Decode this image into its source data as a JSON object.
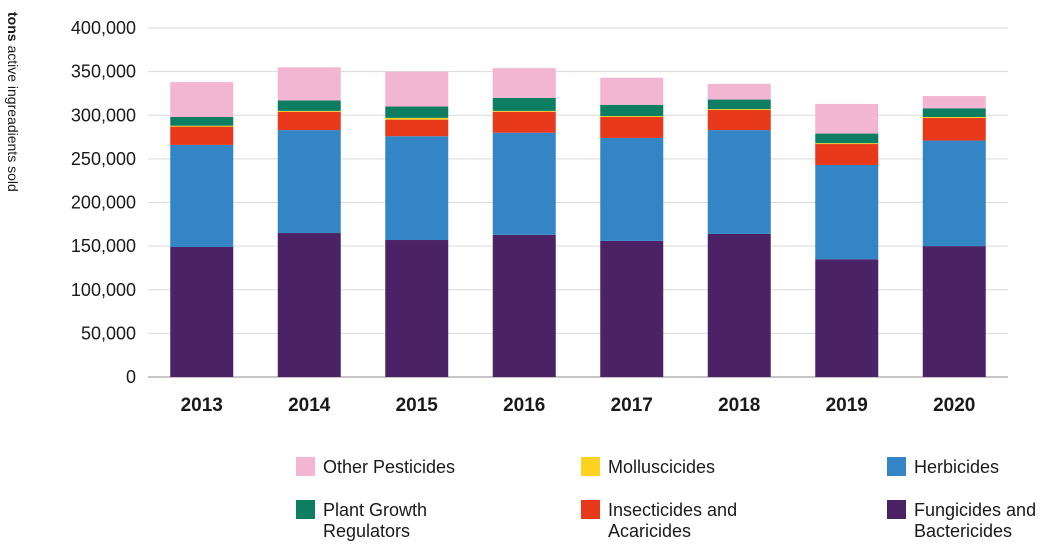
{
  "y_axis_title": {
    "unit": "tons",
    "rest": " active ingreadients sold"
  },
  "chart_data": {
    "type": "bar",
    "stacked": true,
    "categories": [
      "2013",
      "2014",
      "2015",
      "2016",
      "2017",
      "2018",
      "2019",
      "2020"
    ],
    "ylim": [
      0,
      400000
    ],
    "yticks": [
      0,
      50000,
      100000,
      150000,
      200000,
      250000,
      300000,
      350000,
      400000
    ],
    "ytick_labels": [
      "0",
      "50,000",
      "100,000",
      "150,000",
      "200,000",
      "250,000",
      "300,000",
      "350,000",
      "400,000"
    ],
    "ylabel": "tons active ingreadients sold",
    "grid": true,
    "legend_position": "bottom",
    "series": [
      {
        "name": "Fungicides and Bactericides",
        "color": "#4b2266",
        "values": [
          149000,
          165000,
          157000,
          163000,
          156000,
          164000,
          135000,
          150000
        ]
      },
      {
        "name": "Herbicides",
        "color": "#3385c6",
        "values": [
          117000,
          118000,
          119000,
          117000,
          118000,
          119000,
          108000,
          121000
        ]
      },
      {
        "name": "Insecticides and Acaricides",
        "color": "#e8391b",
        "values": [
          21000,
          21000,
          19000,
          24000,
          24000,
          23000,
          24000,
          26000
        ]
      },
      {
        "name": "Molluscicides",
        "color": "#ffd21f",
        "values": [
          1000,
          1000,
          2000,
          1000,
          1000,
          1000,
          1000,
          1000
        ]
      },
      {
        "name": "Plant Growth Regulators",
        "color": "#0e7e62",
        "values": [
          10000,
          12000,
          13000,
          15000,
          13000,
          11000,
          11000,
          10000
        ]
      },
      {
        "name": "Other Pesticides",
        "color": "#f3b6d2",
        "values": [
          40000,
          38000,
          40000,
          34000,
          31000,
          18000,
          34000,
          14000
        ]
      }
    ]
  },
  "legend": [
    {
      "label": "Other Pesticides",
      "color": "#f3b6d2"
    },
    {
      "label": "Molluscicides",
      "color": "#ffd21f"
    },
    {
      "label": "Herbicides",
      "color": "#3385c6"
    },
    {
      "label": "Plant Growth Regulators",
      "color": "#0e7e62"
    },
    {
      "label": "Insecticides and Acaricides",
      "color": "#e8391b"
    },
    {
      "label": "Fungicides and Bactericides",
      "color": "#4b2266"
    }
  ]
}
